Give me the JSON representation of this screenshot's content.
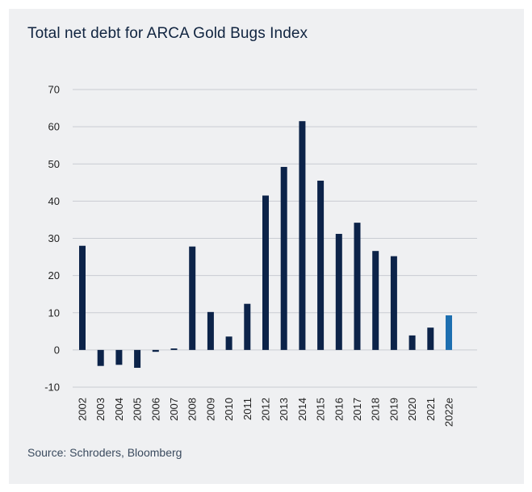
{
  "title": "Total net debt for ARCA Gold Bugs Index",
  "source": "Source: Schroders, Bloomberg",
  "chart_data": {
    "type": "bar",
    "title": "Total net debt for ARCA Gold Bugs Index",
    "xlabel": "",
    "ylabel": "",
    "categories": [
      "2002",
      "2003",
      "2004",
      "2005",
      "2006",
      "2007",
      "2008",
      "2009",
      "2010",
      "2011",
      "2012",
      "2013",
      "2014",
      "2015",
      "2016",
      "2017",
      "2018",
      "2019",
      "2020",
      "2021",
      "2022e"
    ],
    "values": [
      28,
      -4.3,
      -4,
      -4.8,
      -0.5,
      0.4,
      27.8,
      10.2,
      3.6,
      12.4,
      41.5,
      49.2,
      61.5,
      45.5,
      31.2,
      34.2,
      26.6,
      25.2,
      3.9,
      6,
      9.3
    ],
    "ylim": [
      -10,
      70
    ],
    "yticks": [
      70,
      60,
      50,
      40,
      30,
      20,
      10,
      0,
      -10
    ],
    "grid": true,
    "colors": {
      "bar": "#0c2349",
      "highlight": "#1d6fb0",
      "grid": "#c9ccd2"
    },
    "highlight_category": "2022e"
  }
}
